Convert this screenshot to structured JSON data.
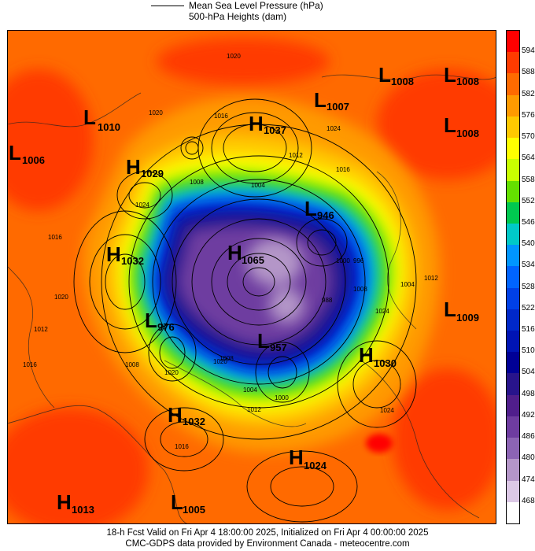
{
  "legend": {
    "line1": "Mean Sea Level Pressure (hPa)",
    "line2": "500-hPa Heights (dam)"
  },
  "colorbar": {
    "ticks": [
      "594",
      "588",
      "582",
      "576",
      "570",
      "564",
      "558",
      "552",
      "546",
      "540",
      "534",
      "528",
      "522",
      "516",
      "510",
      "504",
      "498",
      "492",
      "486",
      "480",
      "474",
      "468"
    ],
    "colors": [
      "#ff0000",
      "#ff3b00",
      "#ff6a00",
      "#ff9a00",
      "#ffc800",
      "#ffff00",
      "#c8ff00",
      "#64e000",
      "#00c850",
      "#00c8c8",
      "#0096ff",
      "#0064ff",
      "#0040e6",
      "#0028c8",
      "#0014b4",
      "#000096",
      "#28148c",
      "#501e8c",
      "#6e3ca0",
      "#8c64b4",
      "#b496c8",
      "#dcc8e6",
      "#ffffff"
    ]
  },
  "centers": [
    {
      "type": "L",
      "value": "1010"
    },
    {
      "type": "L",
      "value": "1006"
    },
    {
      "type": "H",
      "value": "1029"
    },
    {
      "type": "H",
      "value": "1037"
    },
    {
      "type": "L",
      "value": "1007"
    },
    {
      "type": "L",
      "value": "1008"
    },
    {
      "type": "L",
      "value": "1008"
    },
    {
      "type": "L",
      "value": "1008"
    },
    {
      "type": "L",
      "value": "946"
    },
    {
      "type": "H",
      "value": "1032"
    },
    {
      "type": "H",
      "value": "1065"
    },
    {
      "type": "L",
      "value": "976"
    },
    {
      "type": "L",
      "value": "957"
    },
    {
      "type": "L",
      "value": "1009"
    },
    {
      "type": "H",
      "value": "1030"
    },
    {
      "type": "H",
      "value": "1032"
    },
    {
      "type": "H",
      "value": "1024"
    },
    {
      "type": "H",
      "value": "1013"
    },
    {
      "type": "L",
      "value": "1005"
    }
  ],
  "isobar_labels": [
    "1020",
    "1020",
    "1016",
    "1024",
    "1008",
    "1004",
    "1012",
    "1016",
    "1024",
    "1016",
    "1020",
    "1012",
    "1008",
    "1004",
    "1012",
    "1024",
    "1000",
    "1008",
    "1016",
    "1020",
    "996",
    "988",
    "1000",
    "1004",
    "1008",
    "1012",
    "1016",
    "1020",
    "1024"
  ],
  "footer": {
    "line1": "18-h Fcst Valid on Fri Apr  4 18:00:00 2025, Initialized on Fri Apr  4 00:00:00 2025",
    "line2": "CMC-GDPS data provided by Environment Canada - meteocentre.com"
  }
}
